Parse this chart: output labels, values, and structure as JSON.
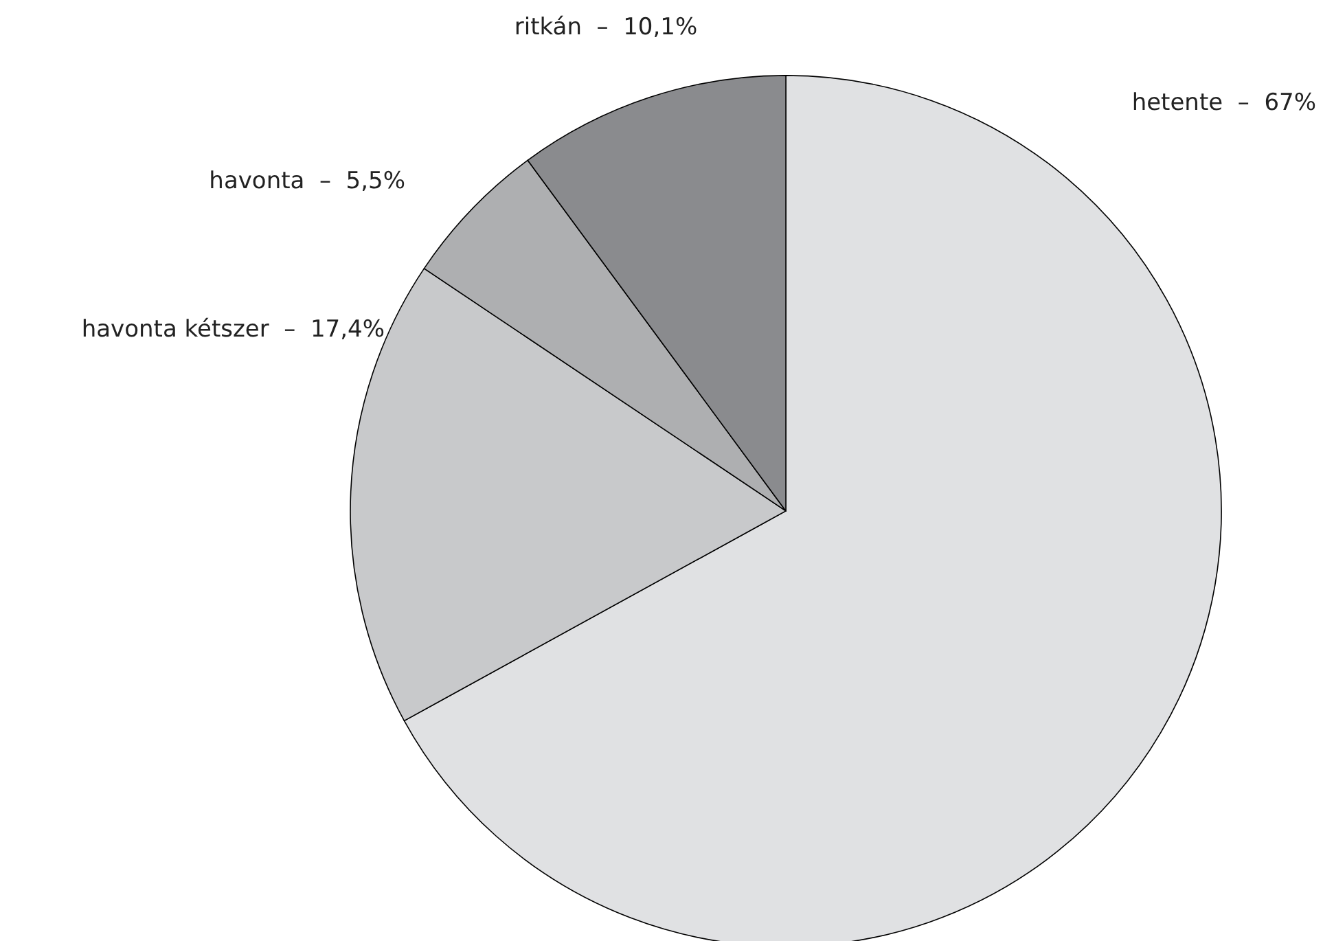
{
  "chart_data": {
    "type": "pie",
    "categories": [
      "hetente",
      "havonta kétszer",
      "havonta",
      "ritkán"
    ],
    "values": [
      67,
      17.4,
      5.5,
      10.1
    ],
    "value_labels": [
      "67%",
      "17,4%",
      "5,5%",
      "10,1%"
    ],
    "colors": [
      "#e0e1e3",
      "#c8c9cb",
      "#aeafb1",
      "#8a8b8e"
    ],
    "legend": false
  }
}
